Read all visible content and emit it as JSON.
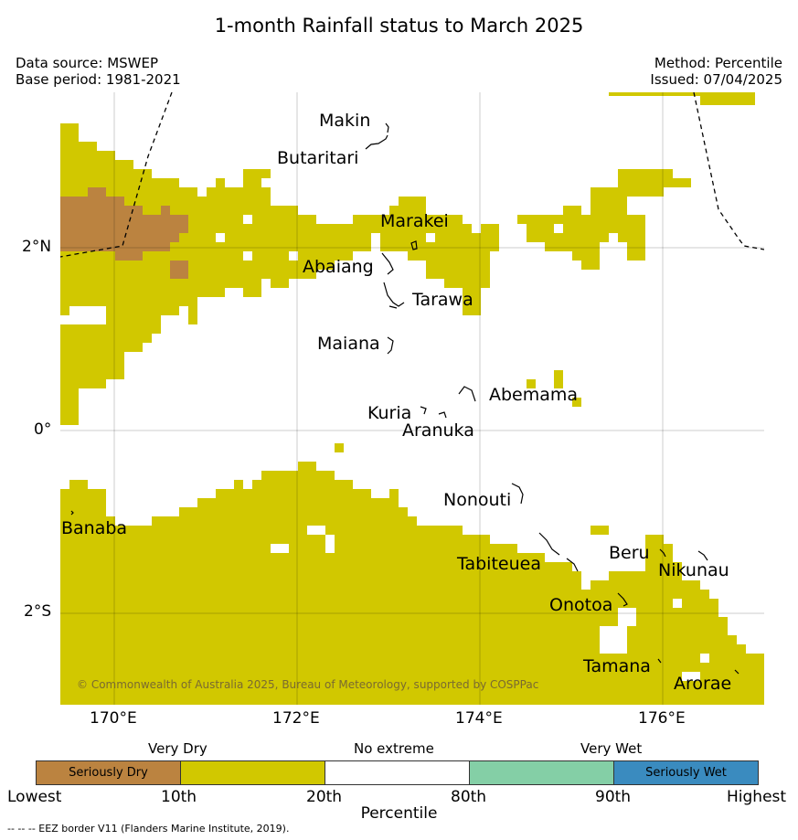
{
  "title": "1-month Rainfall status to March 2025",
  "data_source": "Data source: MSWEP",
  "base_period": "Base period: 1981-2021",
  "method": "Method: Percentile",
  "issued": "Issued: 07/04/2025",
  "copyright": "© Commonwealth of Australia 2025, Bureau of Meteorology, supported by COSPPac",
  "lon_ticks": [
    "170°E",
    "172°E",
    "174°E",
    "176°E"
  ],
  "lat_ticks": [
    "2°N",
    "0°",
    "2°S"
  ],
  "places": [
    "Makin",
    "Butaritari",
    "Marakei",
    "Abaiang",
    "Tarawa",
    "Maiana",
    "Abemama",
    "Kuria",
    "Aranuka",
    "Nonouti",
    "Banaba",
    "Tabiteuea",
    "Beru",
    "Nikunau",
    "Onotoa",
    "Tamana",
    "Arorae"
  ],
  "legend": {
    "top_labels": [
      "Very Dry",
      "No extreme",
      "Very Wet"
    ],
    "categories": [
      {
        "label": "Seriously Dry",
        "color": "#bb8340"
      },
      {
        "label": "",
        "color": "#d1c800"
      },
      {
        "label": "",
        "color": "#ffffff"
      },
      {
        "label": "",
        "color": "#84cfa6"
      },
      {
        "label": "Seriously Wet",
        "color": "#3a8bbf"
      }
    ],
    "bottom_labels": [
      "Lowest",
      "10th",
      "20th",
      "80th",
      "90th",
      "Highest"
    ],
    "axis_label": "Percentile"
  },
  "footnote": "--  --  -- EEZ border V11 (Flanders Marine Institute, 2019)."
}
